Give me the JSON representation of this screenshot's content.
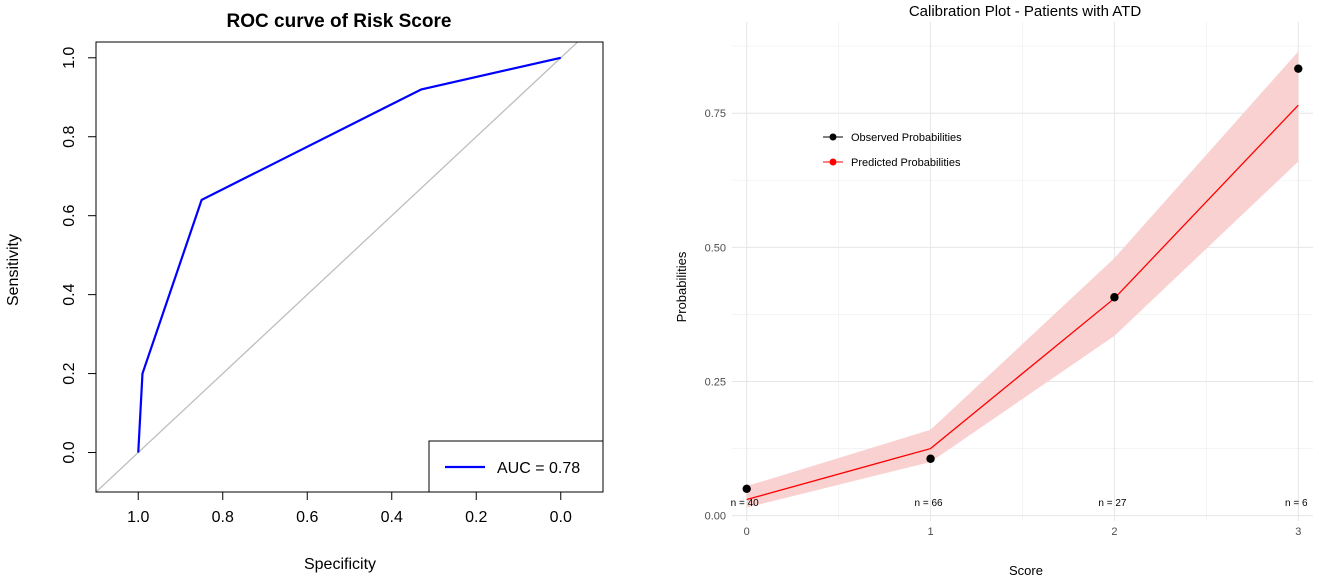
{
  "chart_data": [
    {
      "type": "line",
      "title": "ROC curve of Risk Score",
      "xlabel": "Specificity",
      "ylabel": "Sensitivity",
      "xlim": [
        1.1,
        -0.1
      ],
      "ylim": [
        -0.1,
        1.04
      ],
      "x_ticks": [
        1.0,
        0.8,
        0.6,
        0.4,
        0.2,
        0.0
      ],
      "x_tick_labels": [
        "1.0",
        "0.8",
        "0.6",
        "0.4",
        "0.2",
        "0.0"
      ],
      "y_ticks": [
        0.0,
        0.2,
        0.4,
        0.6,
        0.8,
        1.0
      ],
      "y_tick_labels": [
        "0.0",
        "0.2",
        "0.4",
        "0.6",
        "0.8",
        "1.0"
      ],
      "series": [
        {
          "name": "AUC = 0.78",
          "color": "#0000ff",
          "x": [
            1.0,
            0.99,
            0.85,
            0.33,
            0.0
          ],
          "y": [
            0.0,
            0.2,
            0.64,
            0.92,
            1.0
          ]
        }
      ],
      "reference_line": {
        "color": "#bebebe",
        "from": [
          1.0,
          0.0
        ],
        "to": [
          0.0,
          1.0
        ]
      },
      "legend": {
        "position": "bottom-right",
        "entries": [
          "AUC = 0.78"
        ]
      },
      "grid": false
    },
    {
      "type": "line",
      "title": "Calibration Plot - Patients with ATD",
      "xlabel": "Score",
      "ylabel": "Probabilities",
      "xlim": [
        -0.08,
        3.08
      ],
      "ylim": [
        -0.01,
        0.92
      ],
      "x_ticks": [
        0,
        1,
        2,
        3
      ],
      "x_tick_labels": [
        "0",
        "1",
        "2",
        "3"
      ],
      "y_ticks": [
        0.0,
        0.25,
        0.5,
        0.75
      ],
      "y_tick_labels": [
        "0.00",
        "0.25",
        "0.50",
        "0.75"
      ],
      "series": [
        {
          "name": "Observed Probabilities",
          "kind": "points",
          "color": "#000000",
          "x": [
            0,
            1,
            2,
            3
          ],
          "y": [
            0.05,
            0.106,
            0.407,
            0.833
          ]
        },
        {
          "name": "Predicted Probabilities",
          "kind": "line+points",
          "color": "#ff0000",
          "x": [
            0,
            1,
            2,
            3
          ],
          "y": [
            0.03,
            0.125,
            0.405,
            0.765
          ],
          "ci_lower": [
            0.015,
            0.1,
            0.335,
            0.66
          ],
          "ci_upper": [
            0.055,
            0.16,
            0.48,
            0.865
          ],
          "ci_fill": "#f9cfcf"
        }
      ],
      "annotations": [
        {
          "x": 0,
          "text": "n = 40"
        },
        {
          "x": 1,
          "text": "n = 66"
        },
        {
          "x": 2,
          "text": "n = 27"
        },
        {
          "x": 3,
          "text": "n = 6"
        }
      ],
      "legend": {
        "position": "top-left",
        "entries": [
          "Observed Probabilities",
          "Predicted Probabilities"
        ]
      },
      "grid": true
    }
  ]
}
